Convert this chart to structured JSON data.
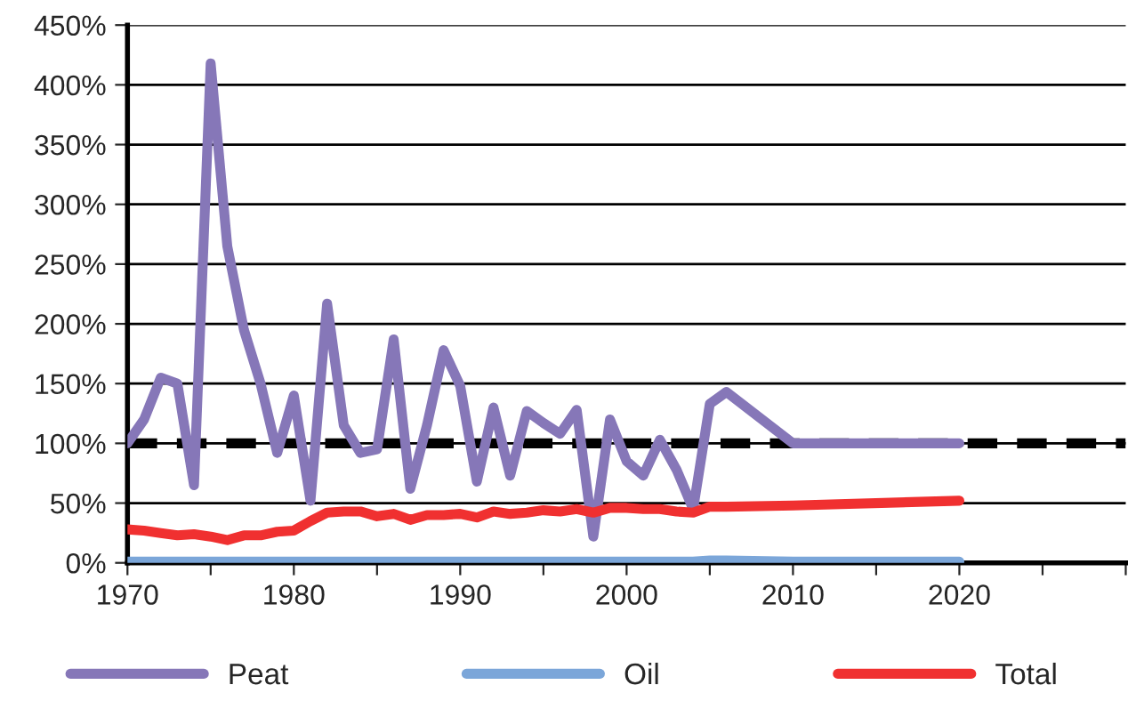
{
  "chart_data": {
    "type": "line",
    "x": [
      1970,
      1971,
      1972,
      1973,
      1974,
      1975,
      1976,
      1977,
      1978,
      1979,
      1980,
      1981,
      1982,
      1983,
      1984,
      1985,
      1986,
      1987,
      1988,
      1989,
      1990,
      1991,
      1992,
      1993,
      1994,
      1995,
      1996,
      1997,
      1998,
      1999,
      2000,
      2001,
      2002,
      2003,
      2004,
      2005,
      2006,
      2010,
      2020
    ],
    "series": [
      {
        "name": "Peat",
        "color": "#8677b8",
        "values": [
          100,
          120,
          155,
          150,
          65,
          418,
          265,
          195,
          150,
          92,
          140,
          52,
          217,
          115,
          92,
          95,
          187,
          62,
          115,
          178,
          148,
          68,
          130,
          73,
          127,
          117,
          108,
          128,
          22,
          120,
          85,
          73,
          103,
          78,
          45,
          133,
          143,
          100,
          100
        ]
      },
      {
        "name": "Oil",
        "color": "#7ba6d9",
        "values": [
          1,
          1,
          1,
          1,
          1,
          1,
          1,
          1,
          1,
          1,
          1,
          1,
          1,
          1,
          1,
          1,
          1,
          1,
          1,
          1,
          1,
          1,
          1,
          1,
          1,
          1,
          1,
          1,
          1,
          1,
          1,
          1,
          1,
          1,
          1,
          2,
          2,
          1,
          1
        ]
      },
      {
        "name": "Total",
        "color": "#f03030",
        "values": [
          28,
          27,
          25,
          23,
          24,
          22,
          19,
          23,
          23,
          26,
          27,
          35,
          42,
          43,
          43,
          39,
          41,
          36,
          40,
          40,
          41,
          38,
          43,
          41,
          42,
          44,
          43,
          45,
          42,
          46,
          46,
          45,
          45,
          43,
          42,
          47,
          47,
          48,
          52
        ]
      }
    ],
    "xlim": [
      1970,
      2030
    ],
    "xticks": [
      1970,
      {
        "value": 1975,
        "label": null
      },
      1980,
      {
        "value": 1985,
        "label": null
      },
      1990,
      {
        "value": 1995,
        "label": null
      },
      2000,
      {
        "value": 2005,
        "label": null
      },
      2010,
      {
        "value": 2015,
        "label": null
      },
      2020,
      {
        "value": 2025,
        "label": null
      },
      {
        "value": 2030,
        "label": null
      }
    ],
    "ylim": [
      0,
      450
    ],
    "yticks": [
      {
        "value": 0,
        "label": "0%"
      },
      {
        "value": 50,
        "label": "50%"
      },
      {
        "value": 100,
        "label": "100%"
      },
      {
        "value": 150,
        "label": "150%"
      },
      {
        "value": 200,
        "label": "200%"
      },
      {
        "value": 250,
        "label": "250%"
      },
      {
        "value": 300,
        "label": "300%"
      },
      {
        "value": 350,
        "label": "350%"
      },
      {
        "value": 400,
        "label": "400%"
      },
      {
        "value": 450,
        "label": "450%"
      }
    ],
    "ref_lines": [
      {
        "axis": "y",
        "value": 100,
        "color": "#000000",
        "line_style": "dashed"
      }
    ],
    "grid": "y",
    "legend": "bottom",
    "line_style": "solid",
    "marker": "none"
  }
}
